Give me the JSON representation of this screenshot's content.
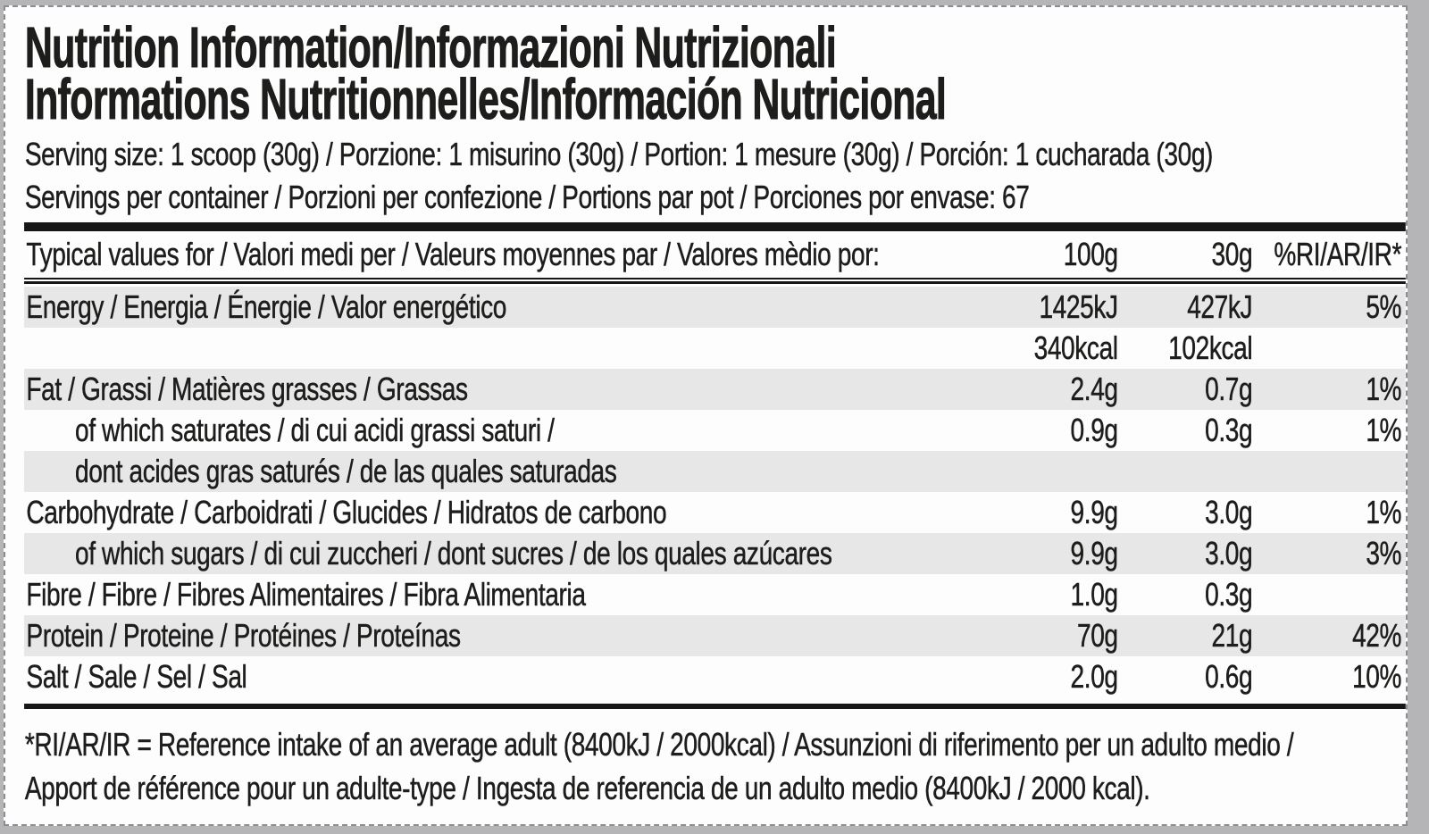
{
  "label": {
    "title_line1": "Nutrition Information/Informazioni Nutrizionali",
    "title_line2": "Informations Nutritionnelles/Información Nutricional",
    "serving_size": "Serving size: 1 scoop (30g) / Porzione: 1 misurino (30g) / Portion: 1 mesure (30g) / Porción: 1 cucharada (30g)",
    "servings_per_container": "Servings per container / Porzioni per confezione / Portions par pot / Porciones por envase: 67",
    "table": {
      "header": {
        "name": "Typical values for / Valori medi per / Valeurs moyennes par / Valores mèdio por:",
        "col_100g": "100g",
        "col_30g": "30g",
        "col_ri": "%RI/AR/IR*"
      },
      "rows": [
        {
          "name": "Energy / Energia / Énergie / Valor energético",
          "v100": "1425kJ",
          "v30": "427kJ",
          "ri": "5%"
        },
        {
          "name": "",
          "v100": "340kcal",
          "v30": "102kcal",
          "ri": ""
        },
        {
          "name": "Fat / Grassi / Matières grasses / Grassas",
          "v100": "2.4g",
          "v30": "0.7g",
          "ri": "1%"
        },
        {
          "name": "of which saturates / di cui acidi grassi saturi /",
          "v100": "0.9g",
          "v30": "0.3g",
          "ri": "1%"
        },
        {
          "name": "dont acides gras saturés / de las quales saturadas",
          "v100": "",
          "v30": "",
          "ri": ""
        },
        {
          "name": "Carbohydrate / Carboidrati / Glucides / Hidratos de carbono",
          "v100": "9.9g",
          "v30": "3.0g",
          "ri": "1%"
        },
        {
          "name": "of which sugars / di cui zuccheri / dont sucres / de los quales azúcares",
          "v100": "9.9g",
          "v30": "3.0g",
          "ri": "3%"
        },
        {
          "name": "Fibre / Fibre / Fibres Alimentaires / Fibra Alimentaria",
          "v100": "1.0g",
          "v30": "0.3g",
          "ri": ""
        },
        {
          "name": "Protein / Proteine / Protéines / Proteínas",
          "v100": "70g",
          "v30": "21g",
          "ri": "42%"
        },
        {
          "name": "Salt / Sale / Sel / Sal",
          "v100": "2.0g",
          "v30": "0.6g",
          "ri": "10%"
        }
      ]
    },
    "footnote": "*RI/AR/IR = Reference intake of an average adult (8400kJ / 2000kcal) / Assunzioni di riferimento per un adulto medio / Apport de référence pour un adulte-type / Ingesta de referencia de un adulto medio (8400kJ / 2000 kcal)."
  },
  "colors": {
    "text": "#1d1d1c",
    "shaded_row": "#e7e7e7",
    "rule": "#161616",
    "card_background": "#fdfdfd",
    "page_background": "#b5b5b7"
  }
}
